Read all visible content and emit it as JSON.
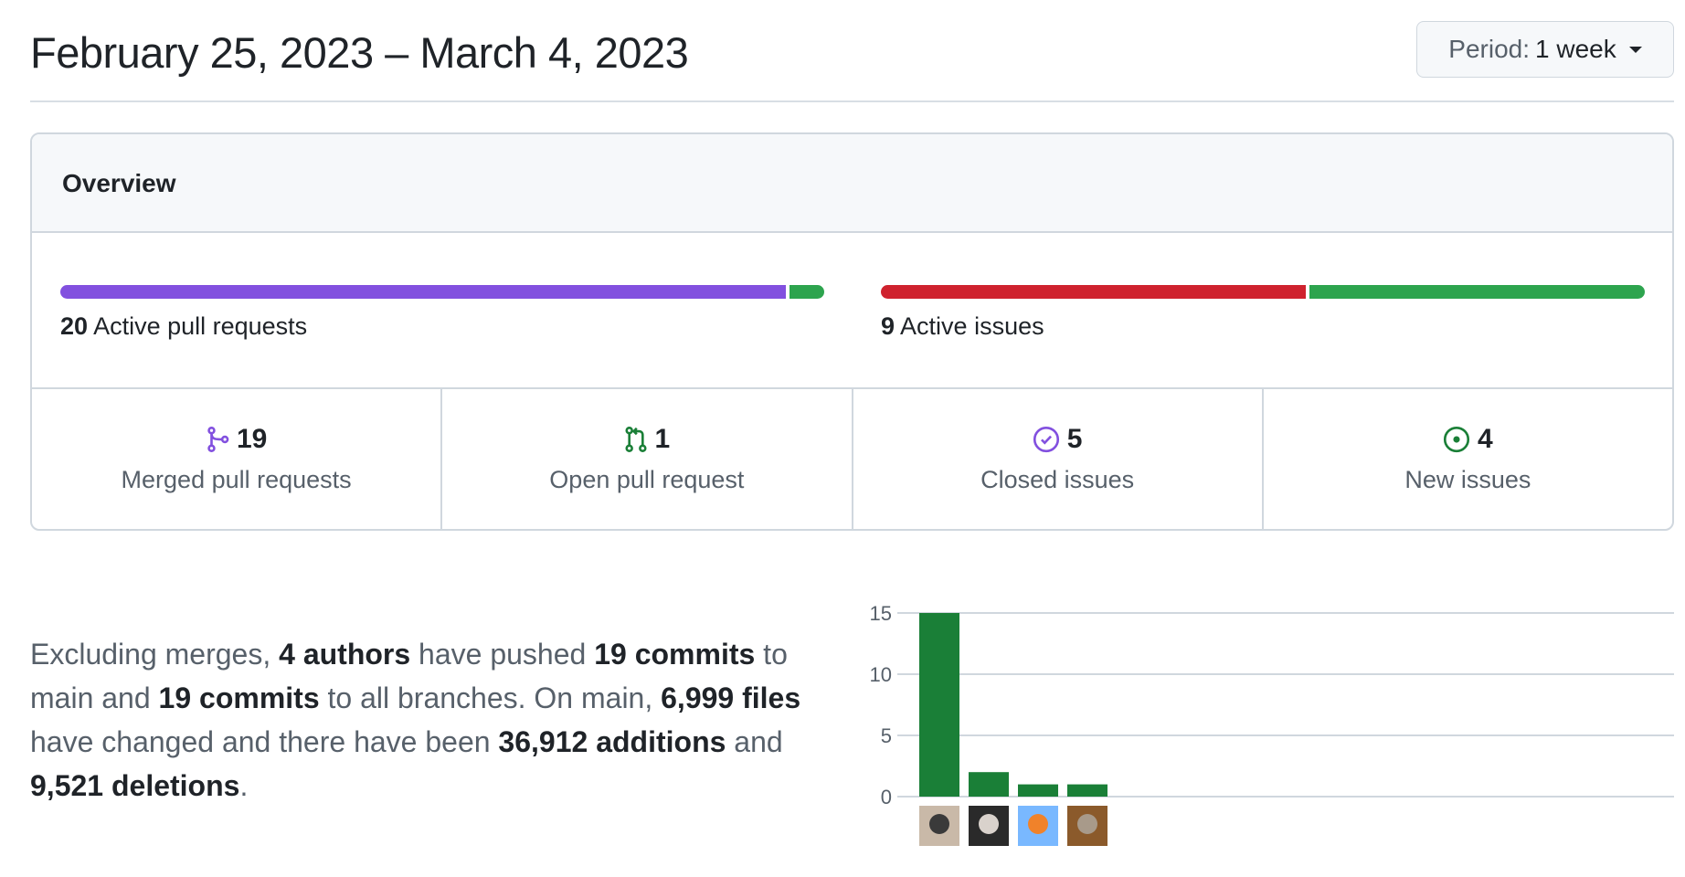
{
  "header": {
    "title": "February 25, 2023 – March 4, 2023",
    "period_label": "Period:",
    "period_value": "1 week"
  },
  "overview": {
    "title": "Overview",
    "pull_requests": {
      "count": "20",
      "label": "Active pull requests",
      "merged_fraction": 0.95,
      "colors": {
        "merged": "#8250df",
        "open": "#2da44e"
      }
    },
    "issues": {
      "count": "9",
      "label": "Active issues",
      "closed_fraction": 0.556,
      "colors": {
        "closed": "#cf222e",
        "new": "#2da44e"
      }
    },
    "stats": [
      {
        "icon": "git-merge-icon",
        "value": "19",
        "label": "Merged pull requests",
        "color": "#8250df"
      },
      {
        "icon": "git-pull-request-icon",
        "value": "1",
        "label": "Open pull request",
        "color": "#1a7f37"
      },
      {
        "icon": "issue-closed-icon",
        "value": "5",
        "label": "Closed issues",
        "color": "#8250df"
      },
      {
        "icon": "issue-opened-icon",
        "value": "4",
        "label": "New issues",
        "color": "#1a7f37"
      }
    ]
  },
  "summary": {
    "p1": "Excluding merges, ",
    "authors": "4 authors",
    "p2": " have pushed ",
    "commits_main": "19 commits",
    "p3": " to main and ",
    "commits_all": "19 commits",
    "p4": " to all branches. On main, ",
    "files": "6,999 files",
    "p5": " have changed and there have been ",
    "additions": "36,912",
    "additions_label": " additions",
    "p6": " and ",
    "deletions": "9,521",
    "deletions_label": " deletions",
    "p7": "."
  },
  "chart_data": {
    "type": "bar",
    "categories": [
      "author-1",
      "author-2",
      "author-3",
      "author-4"
    ],
    "values": [
      15,
      2,
      1,
      1
    ],
    "ylim": [
      0,
      15
    ],
    "yticks": [
      "0",
      "5",
      "10",
      "15"
    ],
    "grid": true,
    "bar_color": "#1a7f37"
  }
}
